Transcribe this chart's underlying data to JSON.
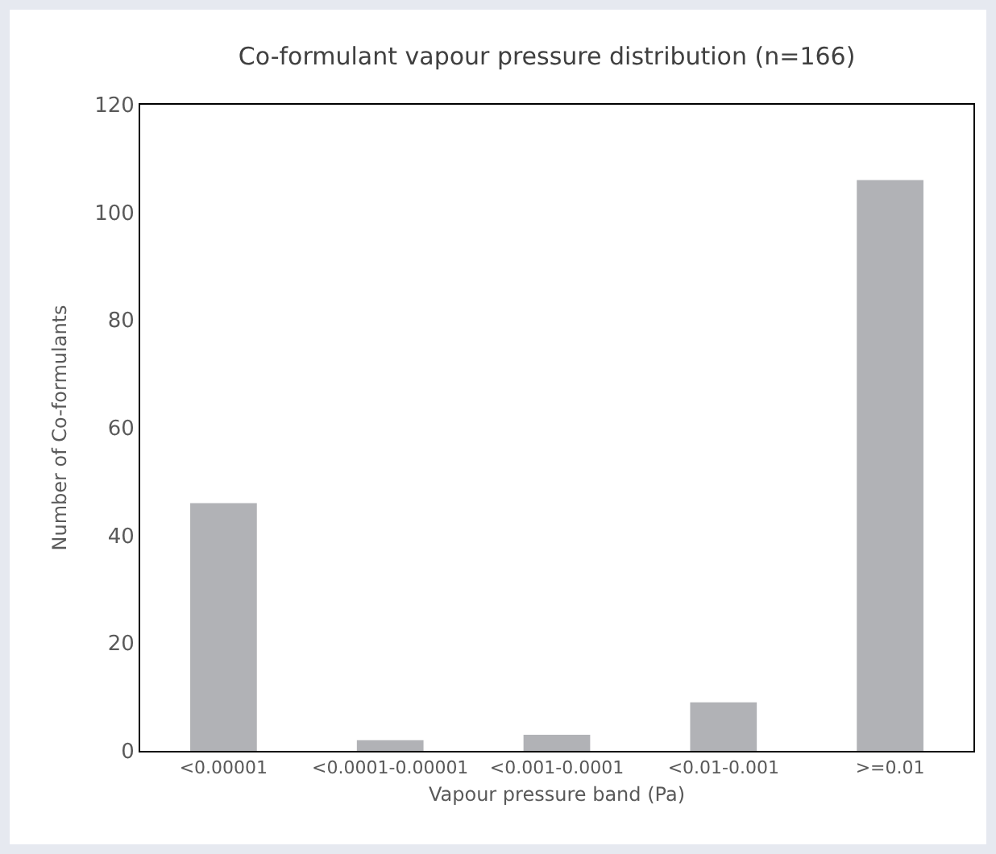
{
  "chart_data": {
    "type": "bar",
    "title": "Co-formulant vapour pressure distribution (n=166)",
    "xlabel": "Vapour pressure band (Pa)",
    "ylabel": "Number of Co-formulants",
    "categories": [
      "<0.00001",
      "<0.0001-0.00001",
      "<0.001-0.0001",
      "<0.01-0.001",
      ">=0.01"
    ],
    "values": [
      46,
      2,
      3,
      9,
      106
    ],
    "color": "#b1b2b6",
    "ylim": [
      0,
      120
    ],
    "yticks": [
      0,
      20,
      40,
      60,
      80,
      100,
      120
    ],
    "grid": false
  }
}
